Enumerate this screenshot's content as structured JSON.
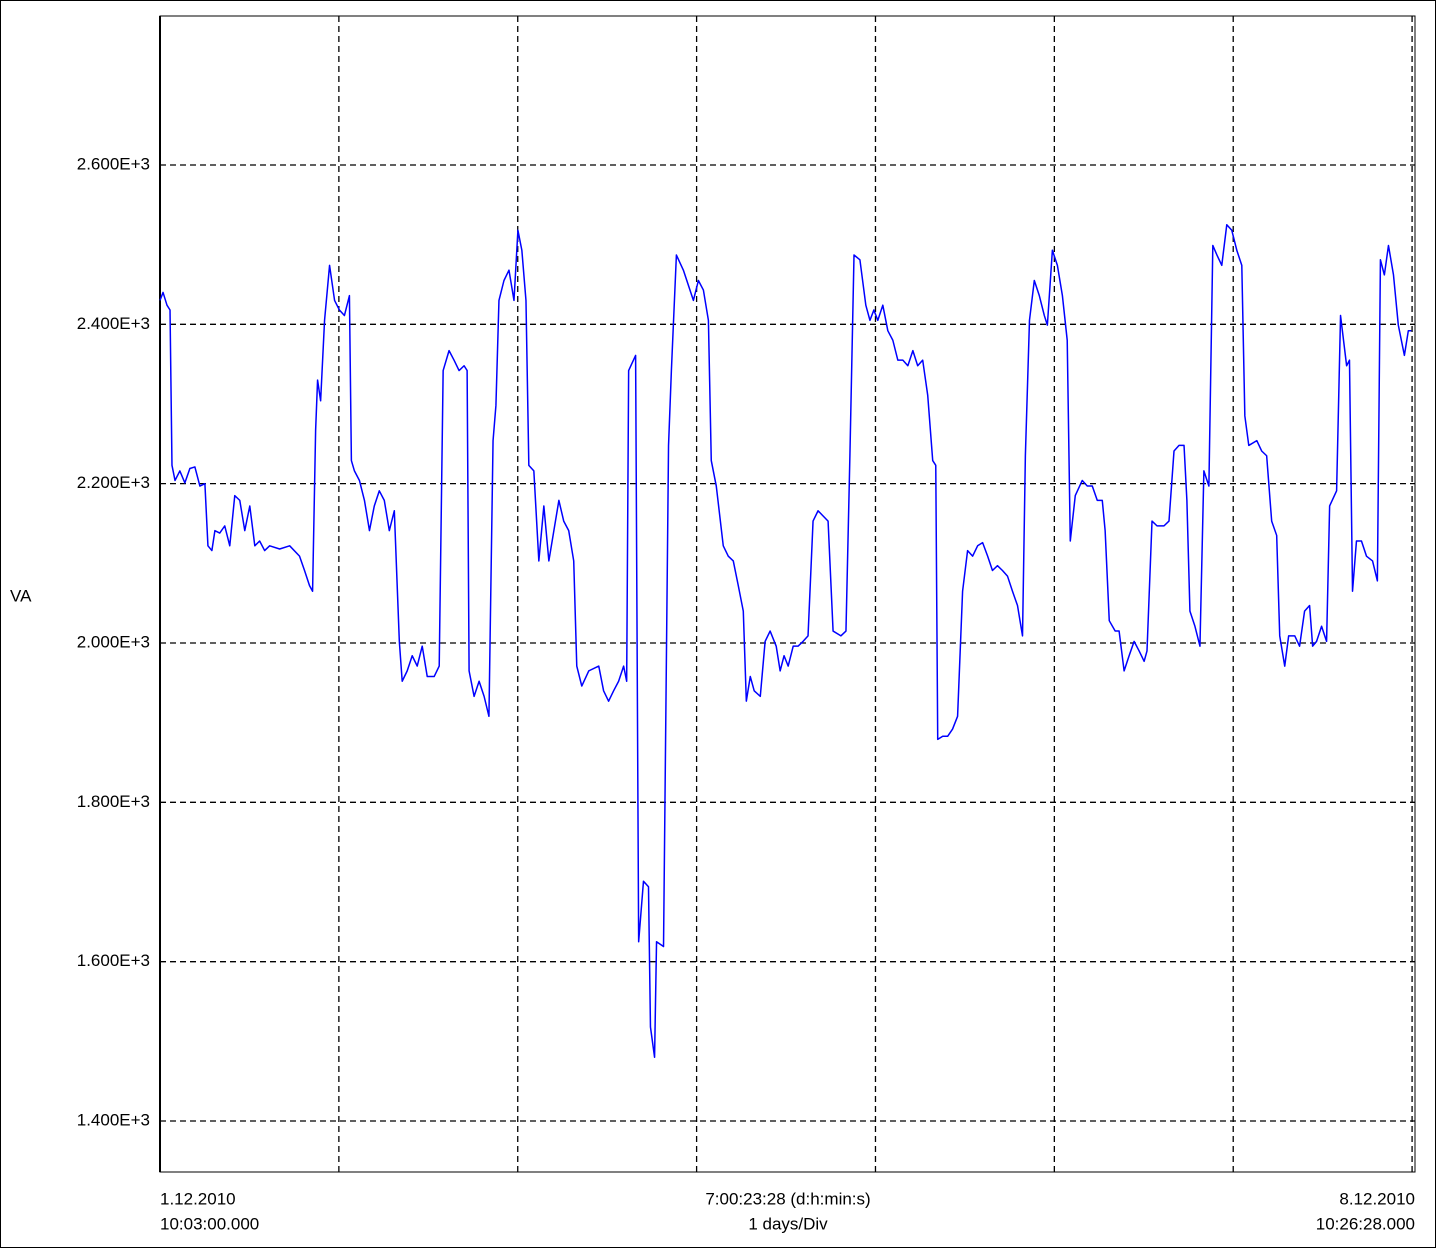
{
  "chart_data": {
    "type": "line",
    "ylabel": "VA",
    "start_label": [
      "1.12.2010",
      "10:03:00.000"
    ],
    "center_label": [
      "7:00:23:28 (d:h:min:s)",
      "1 days/Div"
    ],
    "end_label": [
      "8.12.2010",
      "10:26:28.000"
    ],
    "color": "#0000ff",
    "grid": true,
    "xlim": [
      0,
      7.0163
    ],
    "xticks": [
      1,
      2,
      3,
      4,
      5,
      6,
      7
    ],
    "ylim": [
      1336,
      2787
    ],
    "yticks": [
      {
        "value": 1400,
        "label": "1.400E+3"
      },
      {
        "value": 1600,
        "label": "1.600E+3"
      },
      {
        "value": 1800,
        "label": "1.800E+3"
      },
      {
        "value": 2000,
        "label": "2.000E+3"
      },
      {
        "value": 2200,
        "label": "2.200E+3"
      },
      {
        "value": 2400,
        "label": "2.400E+3"
      },
      {
        "value": 2600,
        "label": "2.600E+3"
      }
    ],
    "x": [
      0,
      0.017,
      0.039,
      0.056,
      0.067,
      0.084,
      0.111,
      0.139,
      0.167,
      0.195,
      0.223,
      0.251,
      0.268,
      0.29,
      0.307,
      0.334,
      0.362,
      0.39,
      0.418,
      0.446,
      0.474,
      0.502,
      0.53,
      0.557,
      0.585,
      0.613,
      0.669,
      0.725,
      0.78,
      0.808,
      0.836,
      0.853,
      0.87,
      0.881,
      0.898,
      0.92,
      0.948,
      0.976,
      1.003,
      1.031,
      1.059,
      1.07,
      1.087,
      1.115,
      1.143,
      1.171,
      1.198,
      1.226,
      1.254,
      1.282,
      1.31,
      1.338,
      1.354,
      1.382,
      1.41,
      1.438,
      1.466,
      1.494,
      1.533,
      1.561,
      1.583,
      1.616,
      1.644,
      1.672,
      1.7,
      1.717,
      1.728,
      1.756,
      1.784,
      1.812,
      1.839,
      1.862,
      1.878,
      1.895,
      1.923,
      1.951,
      1.979,
      2.001,
      2.023,
      2.046,
      2.062,
      2.09,
      2.118,
      2.146,
      2.174,
      2.202,
      2.23,
      2.257,
      2.285,
      2.313,
      2.33,
      2.358,
      2.397,
      2.453,
      2.48,
      2.508,
      2.536,
      2.564,
      2.592,
      2.609,
      2.62,
      2.659,
      2.676,
      2.703,
      2.731,
      2.742,
      2.765,
      2.776,
      2.815,
      2.843,
      2.859,
      2.887,
      2.926,
      2.954,
      2.982,
      3.01,
      3.038,
      3.066,
      3.082,
      3.11,
      3.149,
      3.177,
      3.205,
      3.233,
      3.261,
      3.278,
      3.3,
      3.322,
      3.356,
      3.383,
      3.411,
      3.445,
      3.467,
      3.489,
      3.512,
      3.54,
      3.567,
      3.595,
      3.623,
      3.651,
      3.679,
      3.735,
      3.763,
      3.807,
      3.835,
      3.857,
      3.88,
      3.913,
      3.946,
      3.969,
      3.991,
      4.013,
      4.041,
      4.069,
      4.097,
      4.125,
      4.153,
      4.181,
      4.209,
      4.236,
      4.264,
      4.292,
      4.32,
      4.337,
      4.348,
      4.376,
      4.404,
      4.431,
      4.459,
      4.487,
      4.515,
      4.543,
      4.571,
      4.599,
      4.627,
      4.654,
      4.682,
      4.71,
      4.738,
      4.766,
      4.794,
      4.822,
      4.838,
      4.861,
      4.888,
      4.916,
      4.944,
      4.961,
      4.989,
      5.017,
      5.045,
      5.072,
      5.089,
      5.117,
      5.156,
      5.184,
      5.212,
      5.24,
      5.268,
      5.284,
      5.307,
      5.34,
      5.362,
      5.39,
      5.418,
      5.446,
      5.474,
      5.502,
      5.518,
      5.546,
      5.574,
      5.613,
      5.641,
      5.669,
      5.697,
      5.725,
      5.741,
      5.758,
      5.786,
      5.814,
      5.836,
      5.864,
      5.886,
      5.909,
      5.936,
      5.964,
      5.992,
      6.02,
      6.048,
      6.065,
      6.087,
      6.132,
      6.159,
      6.187,
      6.215,
      6.243,
      6.26,
      6.288,
      6.31,
      6.344,
      6.371,
      6.399,
      6.427,
      6.444,
      6.466,
      6.494,
      6.522,
      6.539,
      6.578,
      6.6,
      6.634,
      6.65,
      6.667,
      6.689,
      6.717,
      6.745,
      6.779,
      6.806,
      6.823,
      6.845,
      6.868,
      6.896,
      6.923,
      6.957,
      6.979,
      6.996
    ],
    "values": [
      2430,
      2440,
      2424,
      2418,
      2223,
      2204,
      2216,
      2201,
      2219,
      2221,
      2197,
      2200,
      2122,
      2116,
      2141,
      2138,
      2147,
      2122,
      2185,
      2179,
      2141,
      2172,
      2122,
      2128,
      2116,
      2122,
      2118,
      2122,
      2109,
      2091,
      2072,
      2065,
      2267,
      2330,
      2304,
      2405,
      2474,
      2430,
      2418,
      2411,
      2436,
      2229,
      2216,
      2204,
      2179,
      2141,
      2172,
      2191,
      2179,
      2141,
      2166,
      2002,
      1952,
      1965,
      1984,
      1971,
      1996,
      1958,
      1958,
      1971,
      2342,
      2367,
      2355,
      2342,
      2348,
      2342,
      1965,
      1933,
      1952,
      1933,
      1908,
      2254,
      2298,
      2430,
      2455,
      2468,
      2430,
      2518,
      2493,
      2430,
      2223,
      2216,
      2103,
      2172,
      2103,
      2141,
      2179,
      2153,
      2141,
      2103,
      1971,
      1946,
      1965,
      1971,
      1940,
      1927,
      1940,
      1952,
      1971,
      1952,
      2342,
      2361,
      1625,
      1701,
      1694,
      1518,
      1480,
      1625,
      1619,
      2248,
      2342,
      2487,
      2468,
      2449,
      2430,
      2455,
      2443,
      2405,
      2229,
      2197,
      2122,
      2109,
      2103,
      2072,
      2040,
      1927,
      1958,
      1940,
      1933,
      2002,
      2015,
      1996,
      1965,
      1984,
      1971,
      1996,
      1996,
      2002,
      2009,
      2153,
      2166,
      2153,
      2015,
      2009,
      2015,
      2235,
      2487,
      2481,
      2424,
      2405,
      2418,
      2405,
      2424,
      2392,
      2380,
      2355,
      2355,
      2348,
      2367,
      2348,
      2355,
      2311,
      2229,
      2223,
      1879,
      1883,
      1883,
      1892,
      1908,
      2065,
      2116,
      2109,
      2122,
      2126,
      2109,
      2091,
      2097,
      2091,
      2084,
      2065,
      2047,
      2009,
      2235,
      2405,
      2455,
      2436,
      2411,
      2399,
      2493,
      2474,
      2436,
      2380,
      2128,
      2185,
      2204,
      2197,
      2197,
      2179,
      2179,
      2141,
      2028,
      2015,
      2015,
      1965,
      1984,
      2002,
      1990,
      1977,
      1990,
      2153,
      2147,
      2147,
      2153,
      2241,
      2248,
      2248,
      2179,
      2040,
      2021,
      1996,
      2216,
      2197,
      2499,
      2487,
      2474,
      2525,
      2518,
      2493,
      2474,
      2285,
      2248,
      2254,
      2241,
      2235,
      2153,
      2135,
      2009,
      1971,
      2009,
      2009,
      1996,
      2040,
      2047,
      1996,
      2002,
      2021,
      2002,
      2172,
      2191,
      2411,
      2348,
      2355,
      2065,
      2128,
      2128,
      2109,
      2103,
      2078,
      2481,
      2462,
      2499,
      2462,
      2399,
      2361,
      2392,
      2392
    ]
  }
}
